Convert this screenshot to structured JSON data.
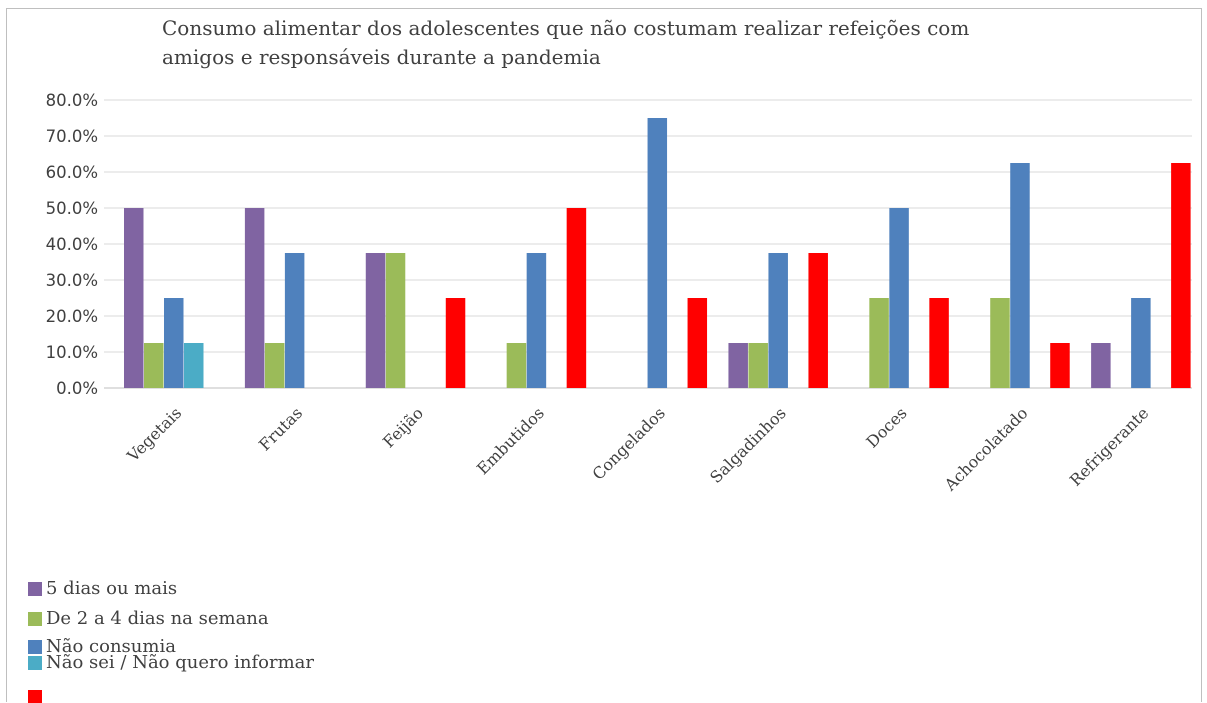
{
  "chart_data": {
    "type": "bar",
    "title_lines": [
      "Consumo alimentar dos adolescentes que não costumam realizar refeições com",
      "amigos e responsáveis durante a pandemia"
    ],
    "categories": [
      "Vegetais",
      "Frutas",
      "Feijão",
      "Embutidos",
      "Congelados",
      "Salgadinhos",
      "Doces",
      "Achocolatado",
      "Refrigerante"
    ],
    "series": [
      {
        "name": "5 dias ou mais",
        "color": "#8064a2",
        "values": [
          50.0,
          50.0,
          37.5,
          0,
          0,
          12.5,
          0,
          0,
          12.5
        ]
      },
      {
        "name": "De 2 a 4 dias na semana",
        "color": "#9bbb59",
        "values": [
          12.5,
          12.5,
          37.5,
          12.5,
          0,
          12.5,
          25.0,
          25.0,
          0
        ]
      },
      {
        "name": "Não consumia",
        "color": "#4f81bd",
        "values": [
          25.0,
          37.5,
          0,
          37.5,
          75.0,
          37.5,
          50.0,
          62.5,
          25.0
        ]
      },
      {
        "name": "Não sei / não quero informar",
        "color": "#4bacc6",
        "values": [
          12.5,
          0,
          0,
          0,
          0,
          0,
          0,
          0,
          0
        ]
      },
      {
        "name": "Não sei / Não quero informar",
        "color": "#ff0000",
        "values": [
          0,
          0,
          25.0,
          50.0,
          25.0,
          37.5,
          25.0,
          12.5,
          62.5
        ]
      }
    ],
    "y_ticks": [
      "0.0%",
      "10.0%",
      "20.0%",
      "30.0%",
      "40.0%",
      "50.0%",
      "60.0%",
      "70.0%",
      "80.0%"
    ],
    "ylim": [
      0,
      80
    ],
    "grid": true,
    "legend_position": "bottom-left",
    "legend_labels": [
      "5 dias ou mais",
      "De 2 a 4 dias na semana",
      "Não consumia",
      "Não sei / Não quero informar",
      ""
    ]
  }
}
